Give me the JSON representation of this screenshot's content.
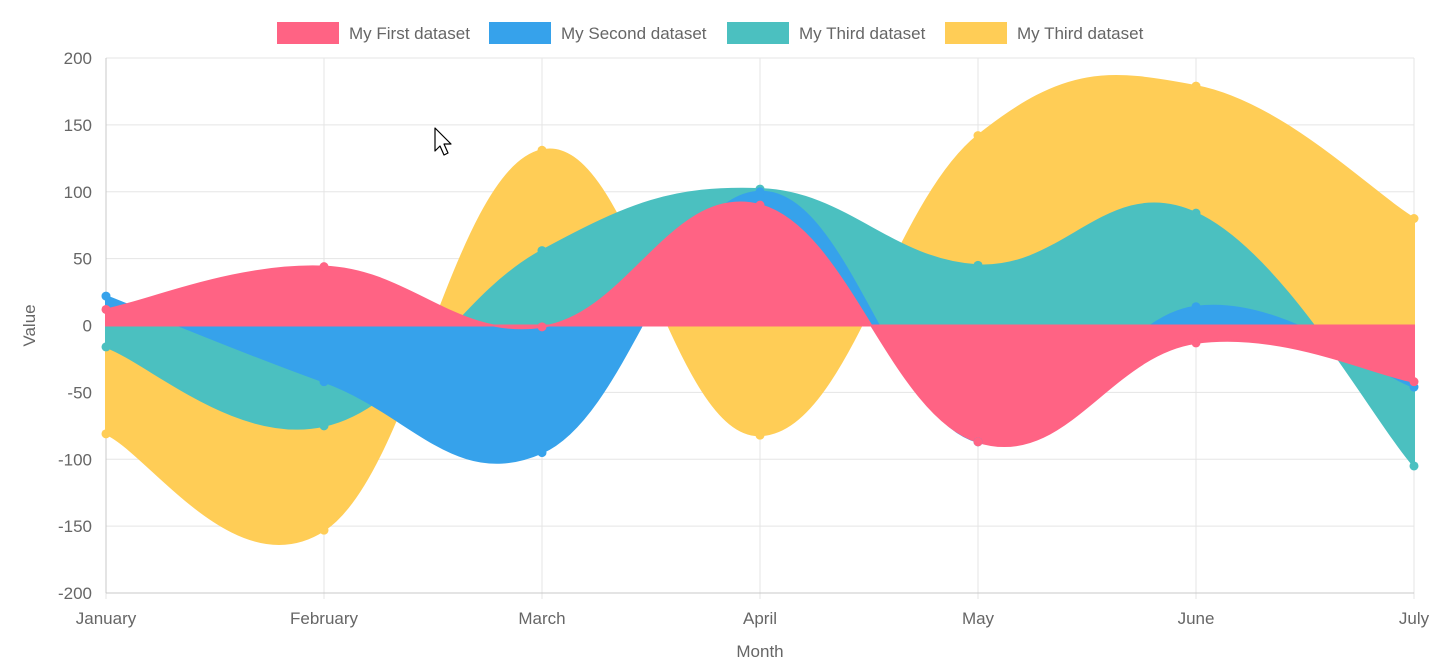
{
  "chart_data": {
    "type": "area",
    "categories": [
      "January",
      "February",
      "March",
      "April",
      "May",
      "June",
      "July"
    ],
    "series": [
      {
        "name": "My First dataset",
        "color": "#ff6384",
        "values": [
          12,
          44,
          -1,
          90,
          -87,
          -13,
          -42
        ]
      },
      {
        "name": "My Second dataset",
        "color": "#36a2eb",
        "values": [
          22,
          -42,
          -95,
          100,
          -87,
          14,
          -46
        ]
      },
      {
        "name": "My Third dataset",
        "color": "#4bc0c0",
        "values": [
          -16,
          -75,
          56,
          102,
          45,
          84,
          -105
        ]
      },
      {
        "name": "My Third dataset",
        "color": "#ffcd56",
        "values": [
          -81,
          -153,
          131,
          -82,
          142,
          179,
          80
        ]
      }
    ],
    "xlabel": "Month",
    "ylabel": "Value",
    "ylim": [
      -200,
      200
    ],
    "yticks": [
      "200",
      "150",
      "100",
      "50",
      "0",
      "-50",
      "-100",
      "-150",
      "-200"
    ],
    "fill_to": "zero",
    "grid": true,
    "legend_position": "top-center",
    "draw_order": [
      3,
      2,
      1,
      0
    ]
  },
  "cursor": {
    "icon": "arrow-cursor-icon"
  }
}
